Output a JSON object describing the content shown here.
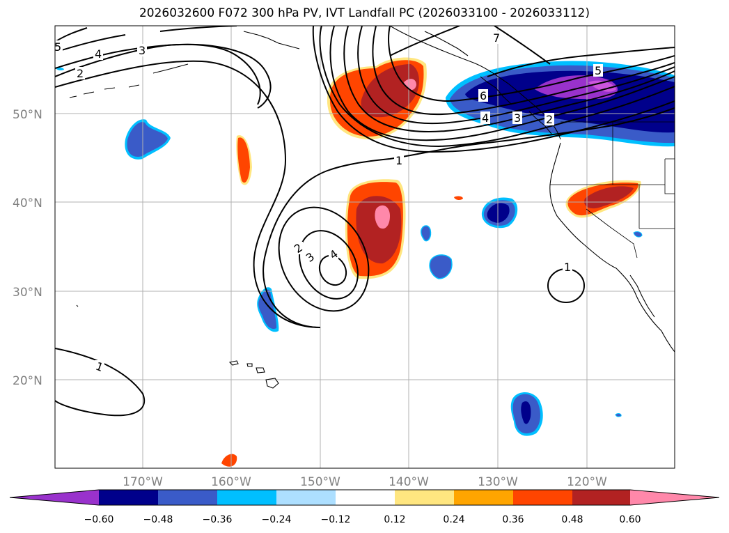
{
  "title": "2026032600 F072 300 hPa PV, IVT Landfall PC (2026033100 - 2026033112)",
  "map": {
    "lat_ticks": [
      "50°N",
      "40°N",
      "30°N",
      "20°N"
    ],
    "lon_ticks": [
      "170°W",
      "160°W",
      "150°W",
      "140°W",
      "130°W",
      "120°W"
    ],
    "contour_labels": [
      "5",
      "4",
      "3",
      "2",
      "7",
      "6",
      "5",
      "4",
      "3",
      "2",
      "1",
      "2",
      "3",
      "4",
      "1",
      "1"
    ]
  },
  "colorbar": {
    "levels": [
      "−0.60",
      "−0.48",
      "−0.36",
      "−0.24",
      "−0.12",
      "0.12",
      "0.24",
      "0.36",
      "0.48",
      "0.60"
    ],
    "colors": [
      "#9932CC",
      "#00008B",
      "#3A5BC8",
      "#00BFFF",
      "#ADDFFF",
      "#FFFFFF",
      "#FFE680",
      "#FFA500",
      "#FF4500",
      "#B22222",
      "#FF88AA"
    ]
  }
}
